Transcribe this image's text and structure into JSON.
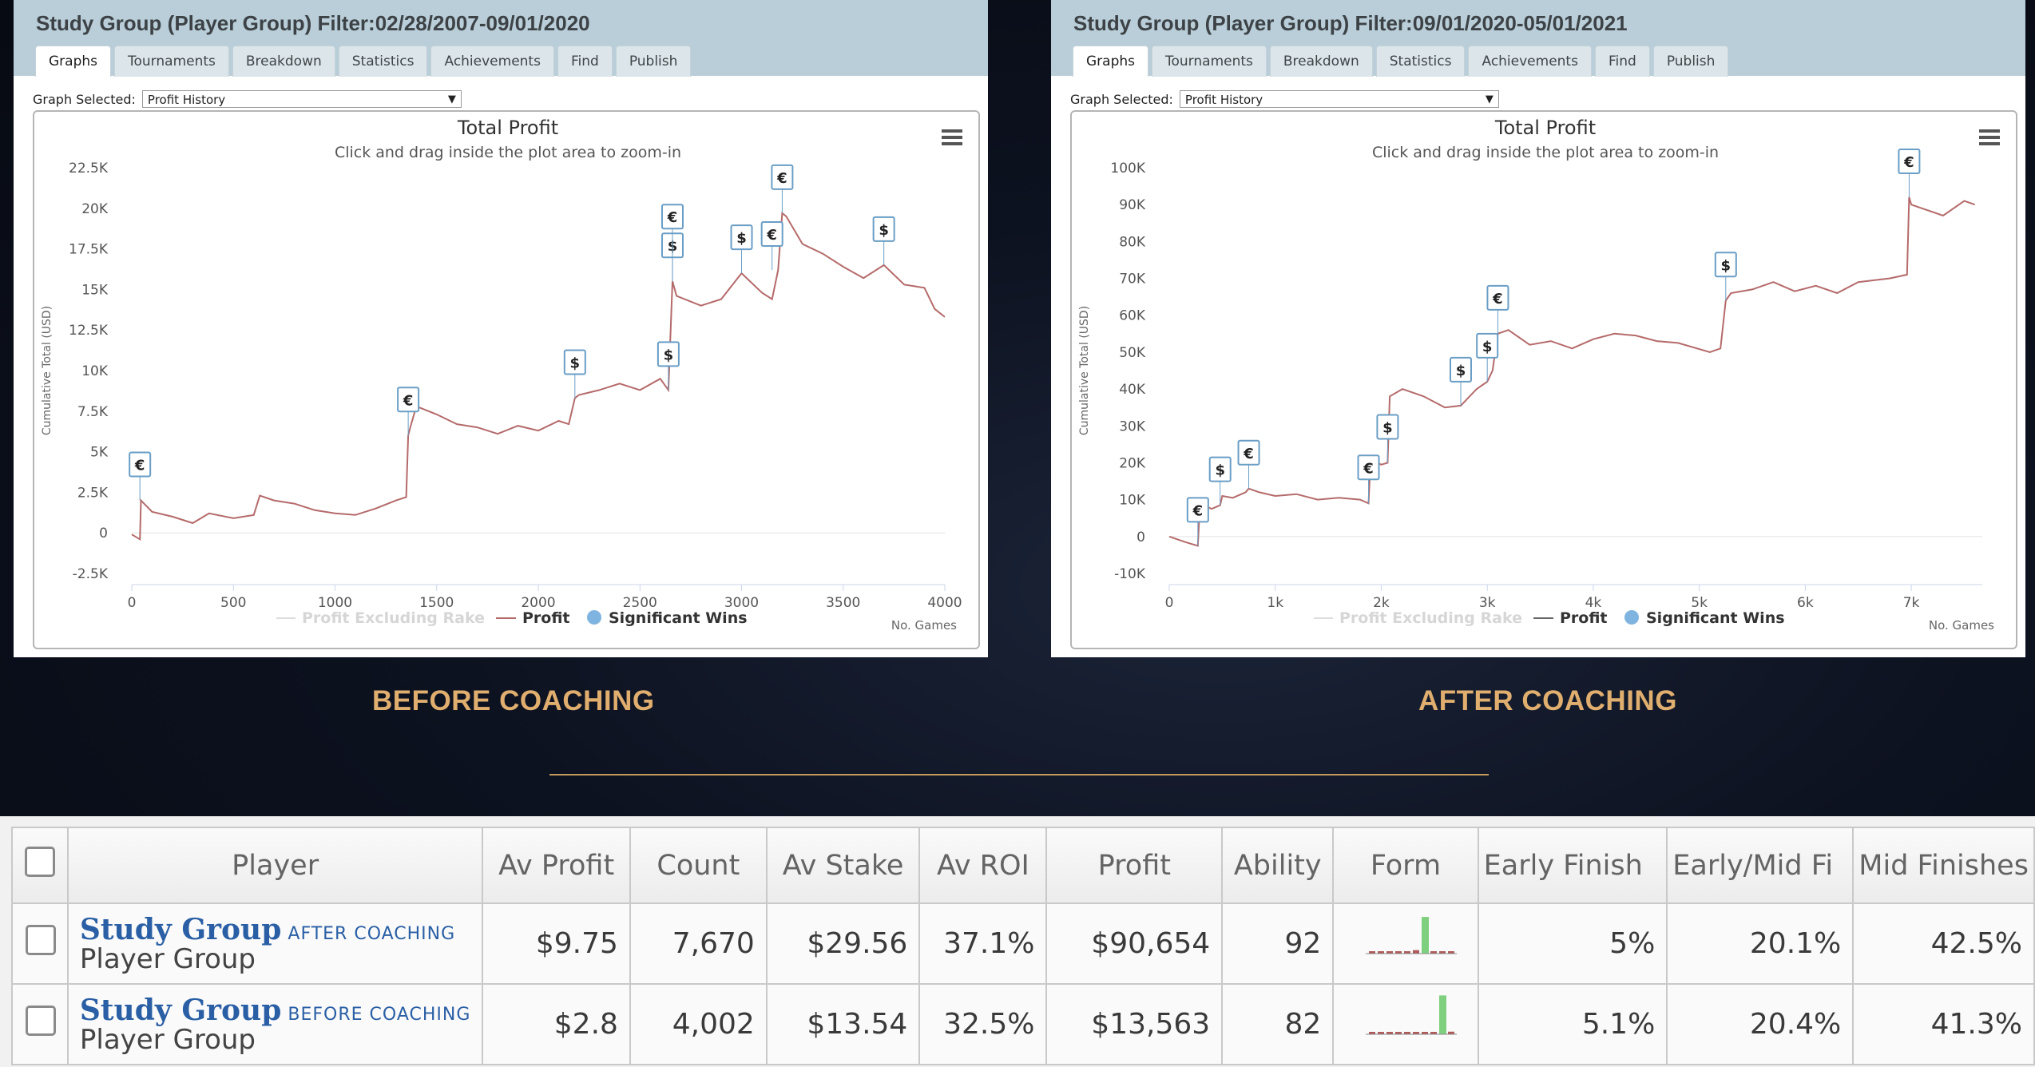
{
  "panels": {
    "before": {
      "title": "Study Group (Player Group) Filter:02/28/2007-09/01/2020",
      "tabs": [
        "Graphs",
        "Tournaments",
        "Breakdown",
        "Statistics",
        "Achievements",
        "Find",
        "Publish"
      ],
      "graph_selected_label": "Graph Selected:",
      "graph_selected_value": "Profit History",
      "caption": "BEFORE COACHING"
    },
    "after": {
      "title": "Study Group (Player Group) Filter:09/01/2020-05/01/2021",
      "tabs": [
        "Graphs",
        "Tournaments",
        "Breakdown",
        "Statistics",
        "Achievements",
        "Find",
        "Publish"
      ],
      "graph_selected_label": "Graph Selected:",
      "graph_selected_value": "Profit History",
      "caption": "AFTER COACHING"
    }
  },
  "chart_data": [
    {
      "type": "line",
      "title": "Total Profit",
      "subtitle": "Click and drag inside the plot area to zoom-in",
      "xlabel": "No. Games",
      "ylabel": "Cumulative Total (USD)",
      "xlim": [
        0,
        4000
      ],
      "ylim": [
        -2500,
        22500
      ],
      "x_ticks": [
        0,
        500,
        1000,
        1500,
        2000,
        2500,
        3000,
        3500,
        4000
      ],
      "x_tick_labels": [
        "0",
        "500",
        "1000",
        "1500",
        "2000",
        "2500",
        "3000",
        "3500",
        "4000"
      ],
      "y_ticks": [
        -2500,
        0,
        2500,
        5000,
        7500,
        10000,
        12500,
        15000,
        17500,
        20000,
        22500
      ],
      "y_tick_labels": [
        "-2.5K",
        "0",
        "2.5K",
        "5K",
        "7.5K",
        "10K",
        "12.5K",
        "15K",
        "17.5K",
        "20K",
        "22.5K"
      ],
      "legend": [
        "Profit Excluding Rake",
        "Profit",
        "Significant Wins"
      ],
      "legend_colors": [
        "#dddddd",
        "#b56a6a",
        "#7fb3e0"
      ],
      "line_color": "#b56a6a",
      "series": [
        {
          "name": "Profit",
          "x": [
            0,
            40,
            45,
            100,
            200,
            300,
            380,
            500,
            600,
            630,
            700,
            800,
            900,
            1000,
            1100,
            1200,
            1300,
            1350,
            1360,
            1370,
            1400,
            1500,
            1600,
            1700,
            1800,
            1900,
            2000,
            2100,
            2150,
            2180,
            2200,
            2300,
            2400,
            2500,
            2600,
            2640,
            2660,
            2680,
            2800,
            2900,
            3000,
            3100,
            3150,
            3180,
            3200,
            3220,
            3300,
            3400,
            3500,
            3600,
            3700,
            3800,
            3900,
            3950,
            4000
          ],
          "y": [
            -100,
            -400,
            2000,
            1300,
            1000,
            600,
            1200,
            900,
            1100,
            2300,
            2000,
            1800,
            1400,
            1200,
            1100,
            1500,
            2000,
            2200,
            6000,
            6500,
            7800,
            7300,
            6700,
            6500,
            6100,
            6600,
            6300,
            6900,
            6700,
            8300,
            8500,
            8800,
            9200,
            8800,
            9500,
            8800,
            15500,
            14600,
            14000,
            14400,
            16000,
            14800,
            14400,
            16200,
            19700,
            19500,
            17800,
            17200,
            16400,
            15700,
            16500,
            15300,
            15100,
            13800,
            13300
          ]
        }
      ],
      "markers": [
        {
          "x": 40,
          "y": 2000,
          "symbol": "€"
        },
        {
          "x": 1360,
          "y": 6000,
          "symbol": "€"
        },
        {
          "x": 2180,
          "y": 8300,
          "symbol": "$"
        },
        {
          "x": 2640,
          "y": 8800,
          "symbol": "$"
        },
        {
          "x": 2660,
          "y": 15500,
          "symbol": "$"
        },
        {
          "x": 2660,
          "y": 15500,
          "symbol": "€"
        },
        {
          "x": 3000,
          "y": 16000,
          "symbol": "$"
        },
        {
          "x": 3150,
          "y": 16200,
          "symbol": "€"
        },
        {
          "x": 3200,
          "y": 19700,
          "symbol": "€"
        },
        {
          "x": 3700,
          "y": 16500,
          "symbol": "$"
        }
      ]
    },
    {
      "type": "line",
      "title": "Total Profit",
      "subtitle": "Click and drag inside the plot area to zoom-in",
      "xlabel": "No. Games",
      "ylabel": "Cumulative Total (USD)",
      "xlim": [
        0,
        7670
      ],
      "ylim": [
        -10000,
        100000
      ],
      "x_ticks": [
        0,
        1000,
        2000,
        3000,
        4000,
        5000,
        6000,
        7000
      ],
      "x_tick_labels": [
        "0",
        "1k",
        "2k",
        "3k",
        "4k",
        "5k",
        "6k",
        "7k"
      ],
      "y_ticks": [
        -10000,
        0,
        10000,
        20000,
        30000,
        40000,
        50000,
        60000,
        70000,
        80000,
        90000,
        100000
      ],
      "y_tick_labels": [
        "-10K",
        "0",
        "10K",
        "20K",
        "30K",
        "40K",
        "50K",
        "60K",
        "70K",
        "80K",
        "90K",
        "100K"
      ],
      "legend": [
        "Profit Excluding Rake",
        "Profit",
        "Significant Wins"
      ],
      "legend_colors": [
        "#dddddd",
        "#666666",
        "#7fb3e0"
      ],
      "line_color": "#b56a6a",
      "series": [
        {
          "name": "Profit",
          "x": [
            0,
            150,
            270,
            290,
            400,
            480,
            500,
            600,
            720,
            750,
            850,
            1000,
            1200,
            1400,
            1600,
            1800,
            1880,
            1900,
            2000,
            2060,
            2080,
            2200,
            2400,
            2600,
            2750,
            2900,
            2950,
            3000,
            3050,
            3100,
            3200,
            3400,
            3600,
            3800,
            4000,
            4200,
            4400,
            4600,
            4800,
            5100,
            5200,
            5250,
            5300,
            5500,
            5700,
            5900,
            6100,
            6300,
            6500,
            6800,
            6960,
            6980,
            7000,
            7100,
            7300,
            7500,
            7600
          ],
          "y": [
            0,
            -1500,
            -2500,
            9000,
            7500,
            8500,
            11000,
            10500,
            12000,
            13000,
            12000,
            11000,
            11500,
            10000,
            10500,
            10000,
            9000,
            21000,
            19500,
            20000,
            38000,
            40000,
            38000,
            35000,
            35500,
            40000,
            41000,
            42000,
            45000,
            55000,
            56000,
            52000,
            53000,
            51000,
            53500,
            55000,
            54500,
            53000,
            52500,
            50000,
            51000,
            64000,
            66000,
            67000,
            69000,
            66500,
            68000,
            66000,
            69000,
            70000,
            71000,
            92000,
            90000,
            89000,
            87000,
            91000,
            90000
          ]
        }
      ],
      "markers": [
        {
          "x": 270,
          "y": -2500,
          "symbol": "€"
        },
        {
          "x": 480,
          "y": 8500,
          "symbol": "$"
        },
        {
          "x": 750,
          "y": 13000,
          "symbol": "€"
        },
        {
          "x": 1880,
          "y": 9000,
          "symbol": "€"
        },
        {
          "x": 2060,
          "y": 20000,
          "symbol": "$"
        },
        {
          "x": 2750,
          "y": 35500,
          "symbol": "$"
        },
        {
          "x": 3000,
          "y": 42000,
          "symbol": "$"
        },
        {
          "x": 3100,
          "y": 55000,
          "symbol": "€"
        },
        {
          "x": 5250,
          "y": 64000,
          "symbol": "$"
        },
        {
          "x": 6980,
          "y": 92000,
          "symbol": "€"
        }
      ]
    }
  ],
  "table": {
    "columns": [
      "Player",
      "Av Profit",
      "Count",
      "Av Stake",
      "Av ROI",
      "Profit",
      "Ability",
      "Form",
      "Early Finish",
      "Early/Mid Fi",
      "Mid Finishes"
    ],
    "rows": [
      {
        "name": "Study Group",
        "tag": "AFTER COACHING",
        "sub": "Player Group",
        "av_profit": "$9.75",
        "count": "7,670",
        "av_stake": "$29.56",
        "av_roi": "37.1%",
        "profit": "$90,654",
        "ability": "92",
        "form": [
          0.05,
          0.05,
          0.02,
          0.02,
          0.02,
          0.08,
          0.85,
          0.04,
          0.05,
          0.05
        ],
        "early_finish": "5%",
        "early_mid": "20.1%",
        "mid_finishes": "42.5%"
      },
      {
        "name": "Study Group",
        "tag": "BEFORE COACHING",
        "sub": "Player Group",
        "av_profit": "$2.8",
        "count": "4,002",
        "av_stake": "$13.54",
        "av_roi": "32.5%",
        "profit": "$13,563",
        "ability": "82",
        "form": [
          0.03,
          0.04,
          0.03,
          0.03,
          0.04,
          0.04,
          0.05,
          0.05,
          0.9,
          0.06
        ],
        "early_finish": "5.1%",
        "early_mid": "20.4%",
        "mid_finishes": "41.3%"
      }
    ]
  }
}
